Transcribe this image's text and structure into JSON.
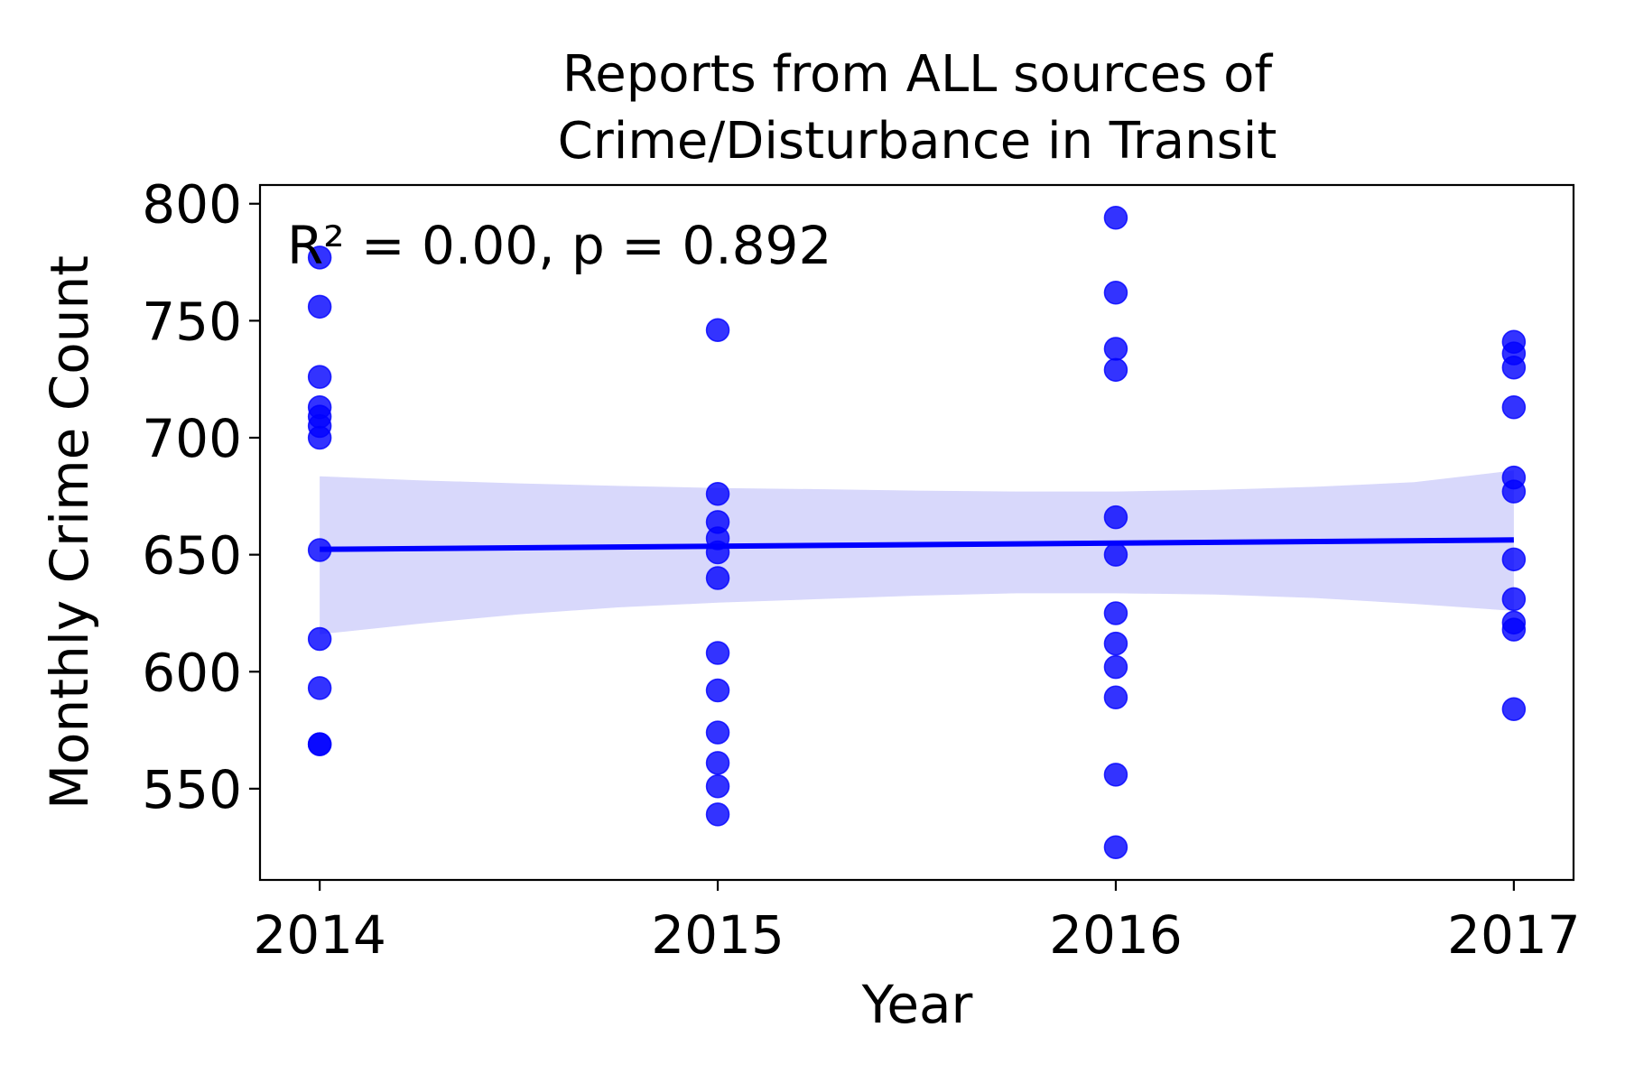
{
  "chart_data": {
    "type": "scatter",
    "title_lines": [
      "Reports from ALL sources of",
      "Crime/Disturbance in Transit"
    ],
    "xlabel": "Year",
    "ylabel": "Monthly Crime Count",
    "annotation": "R² = 0.00, p = 0.892",
    "x_ticks": [
      2014,
      2015,
      2016,
      2017
    ],
    "y_ticks": [
      550,
      600,
      650,
      700,
      750,
      800
    ],
    "xlim": [
      2013.85,
      2017.15
    ],
    "ylim": [
      511,
      808
    ],
    "grid": false,
    "colors": {
      "points": "#0000ff",
      "line": "#0000ff",
      "band": "#d8d8fb"
    },
    "points": [
      {
        "x": 2014,
        "y": 777
      },
      {
        "x": 2014,
        "y": 756
      },
      {
        "x": 2014,
        "y": 726
      },
      {
        "x": 2014,
        "y": 713
      },
      {
        "x": 2014,
        "y": 709
      },
      {
        "x": 2014,
        "y": 705
      },
      {
        "x": 2014,
        "y": 700
      },
      {
        "x": 2014,
        "y": 652
      },
      {
        "x": 2014,
        "y": 614
      },
      {
        "x": 2014,
        "y": 593
      },
      {
        "x": 2014,
        "y": 569
      },
      {
        "x": 2014,
        "y": 569
      },
      {
        "x": 2015,
        "y": 746
      },
      {
        "x": 2015,
        "y": 676
      },
      {
        "x": 2015,
        "y": 664
      },
      {
        "x": 2015,
        "y": 657
      },
      {
        "x": 2015,
        "y": 651
      },
      {
        "x": 2015,
        "y": 640
      },
      {
        "x": 2015,
        "y": 608
      },
      {
        "x": 2015,
        "y": 592
      },
      {
        "x": 2015,
        "y": 574
      },
      {
        "x": 2015,
        "y": 561
      },
      {
        "x": 2015,
        "y": 551
      },
      {
        "x": 2015,
        "y": 539
      },
      {
        "x": 2016,
        "y": 794
      },
      {
        "x": 2016,
        "y": 762
      },
      {
        "x": 2016,
        "y": 738
      },
      {
        "x": 2016,
        "y": 729
      },
      {
        "x": 2016,
        "y": 666
      },
      {
        "x": 2016,
        "y": 650
      },
      {
        "x": 2016,
        "y": 625
      },
      {
        "x": 2016,
        "y": 612
      },
      {
        "x": 2016,
        "y": 602
      },
      {
        "x": 2016,
        "y": 589
      },
      {
        "x": 2016,
        "y": 556
      },
      {
        "x": 2016,
        "y": 525
      },
      {
        "x": 2017,
        "y": 741
      },
      {
        "x": 2017,
        "y": 736
      },
      {
        "x": 2017,
        "y": 730
      },
      {
        "x": 2017,
        "y": 713
      },
      {
        "x": 2017,
        "y": 683
      },
      {
        "x": 2017,
        "y": 677
      },
      {
        "x": 2017,
        "y": 648
      },
      {
        "x": 2017,
        "y": 631
      },
      {
        "x": 2017,
        "y": 621
      },
      {
        "x": 2017,
        "y": 618
      },
      {
        "x": 2017,
        "y": 584
      }
    ],
    "regression": {
      "x": [
        2014,
        2017
      ],
      "y": [
        652.3,
        656.3
      ]
    },
    "confidence_band": {
      "x": [
        2014,
        2014.25,
        2014.5,
        2014.75,
        2015,
        2015.25,
        2015.5,
        2015.75,
        2016,
        2016.25,
        2016.5,
        2016.75,
        2017
      ],
      "upper": [
        683.5,
        681.8,
        680.5,
        679.4,
        678.5,
        678.0,
        677.4,
        677.0,
        677.0,
        677.7,
        679.0,
        681.0,
        686.0
      ],
      "lower": [
        616.0,
        620.5,
        624.5,
        627.5,
        629.5,
        631.0,
        632.5,
        633.5,
        633.5,
        633.0,
        631.5,
        629.0,
        626.0
      ]
    }
  }
}
